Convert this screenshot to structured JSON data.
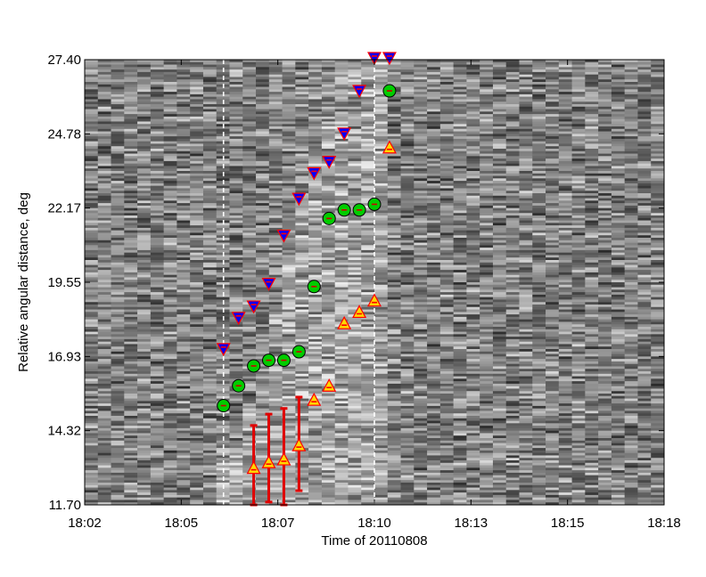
{
  "chart_data": {
    "type": "scatter",
    "background": "heatmap",
    "xlabel": "Time of 20110808",
    "ylabel": "Relative angular distance, deg",
    "x_ticks": [
      "18:02",
      "18:05",
      "18:07",
      "18:10",
      "18:13",
      "18:15",
      "18:18"
    ],
    "y_ticks": [
      "11.70",
      "14.32",
      "16.93",
      "19.55",
      "22.17",
      "24.78",
      "27.40"
    ],
    "xlim": [
      "18:02",
      "18:18"
    ],
    "ylim": [
      11.7,
      27.4
    ],
    "vertical_lines": [
      "18:05:50",
      "18:10:00"
    ],
    "series": [
      {
        "marker": "downward-triangle",
        "color": "#0000ff",
        "edge_color": "#ff0000",
        "points": [
          {
            "x": "18:05:50",
            "y": 17.2
          },
          {
            "x": "18:06:15",
            "y": 18.3
          },
          {
            "x": "18:06:40",
            "y": 18.7
          },
          {
            "x": "18:07:05",
            "y": 19.5
          },
          {
            "x": "18:07:30",
            "y": 21.2
          },
          {
            "x": "18:07:55",
            "y": 22.5
          },
          {
            "x": "18:08:20",
            "y": 23.4
          },
          {
            "x": "18:08:45",
            "y": 23.8
          },
          {
            "x": "18:09:10",
            "y": 24.8
          },
          {
            "x": "18:09:35",
            "y": 26.3
          },
          {
            "x": "18:10:00",
            "y": 27.5
          },
          {
            "x": "18:10:25",
            "y": 27.5
          }
        ]
      },
      {
        "marker": "circle",
        "color": "#00cc00",
        "edge_color": "#000000",
        "points": [
          {
            "x": "18:05:50",
            "y": 15.2
          },
          {
            "x": "18:06:15",
            "y": 15.9
          },
          {
            "x": "18:06:40",
            "y": 16.6
          },
          {
            "x": "18:07:05",
            "y": 16.8
          },
          {
            "x": "18:07:30",
            "y": 16.8
          },
          {
            "x": "18:07:55",
            "y": 17.1
          },
          {
            "x": "18:08:20",
            "y": 19.4
          },
          {
            "x": "18:08:45",
            "y": 21.8
          },
          {
            "x": "18:09:10",
            "y": 22.1
          },
          {
            "x": "18:09:35",
            "y": 22.1
          },
          {
            "x": "18:10:00",
            "y": 22.3
          },
          {
            "x": "18:10:25",
            "y": 26.3
          }
        ]
      },
      {
        "marker": "upward-triangle",
        "color": "#ffd700",
        "edge_color": "#ff0000",
        "points": [
          {
            "x": "18:06:40",
            "y": 13.0,
            "err_low": 11.7,
            "err_high": 14.5
          },
          {
            "x": "18:07:05",
            "y": 13.2,
            "err_low": 11.8,
            "err_high": 14.9
          },
          {
            "x": "18:07:30",
            "y": 13.3,
            "err_low": 11.7,
            "err_high": 15.1
          },
          {
            "x": "18:07:55",
            "y": 13.8,
            "err_low": 12.2,
            "err_high": 15.5
          },
          {
            "x": "18:08:20",
            "y": 15.4
          },
          {
            "x": "18:08:45",
            "y": 15.9
          },
          {
            "x": "18:09:10",
            "y": 18.1
          },
          {
            "x": "18:09:35",
            "y": 18.5
          },
          {
            "x": "18:10:00",
            "y": 18.9
          },
          {
            "x": "18:10:25",
            "y": 24.3
          }
        ]
      }
    ]
  }
}
